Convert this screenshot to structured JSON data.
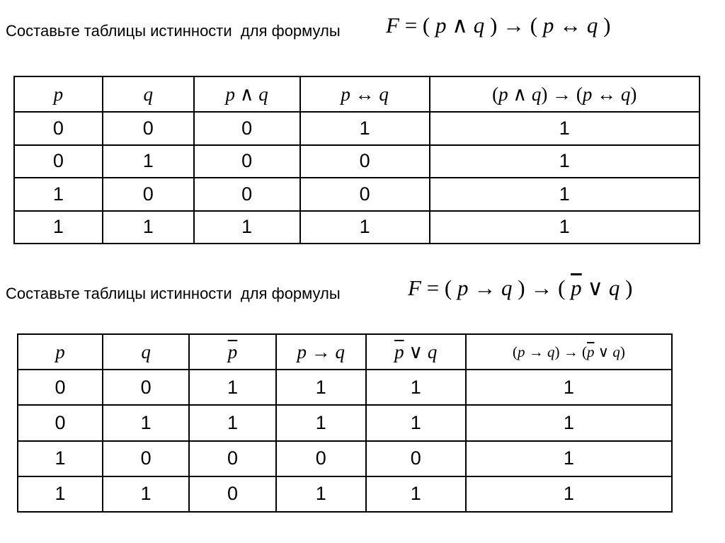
{
  "colors": {
    "text": "#000000",
    "background": "#ffffff",
    "table_border": "#000000"
  },
  "sections": [
    {
      "prompt": "Составьте таблицы истинности  для формулы",
      "formula": "F = ( p ∧ q ) → ( p ↔ q )",
      "table": {
        "headers": [
          "p",
          "q",
          "p ∧ q",
          "p ↔ q",
          "(p ∧ q) → (p ↔ q)"
        ],
        "rows": [
          [
            "0",
            "0",
            "0",
            "1",
            "1"
          ],
          [
            "0",
            "1",
            "0",
            "0",
            "1"
          ],
          [
            "1",
            "0",
            "0",
            "0",
            "1"
          ],
          [
            "1",
            "1",
            "1",
            "1",
            "1"
          ]
        ]
      }
    },
    {
      "prompt": "Составьте таблицы истинности  для формулы",
      "formula": "F = ( p → q ) → ( p̅ ∨ q )",
      "table": {
        "headers": [
          "p",
          "q",
          "p̅",
          "p → q",
          "p̅ ∨ q",
          "(p → q) → (p̅ ∨ q)"
        ],
        "rows": [
          [
            "0",
            "0",
            "1",
            "1",
            "1",
            "1"
          ],
          [
            "0",
            "1",
            "1",
            "1",
            "1",
            "1"
          ],
          [
            "1",
            "0",
            "0",
            "0",
            "0",
            "1"
          ],
          [
            "1",
            "1",
            "0",
            "1",
            "1",
            "1"
          ]
        ]
      }
    }
  ]
}
